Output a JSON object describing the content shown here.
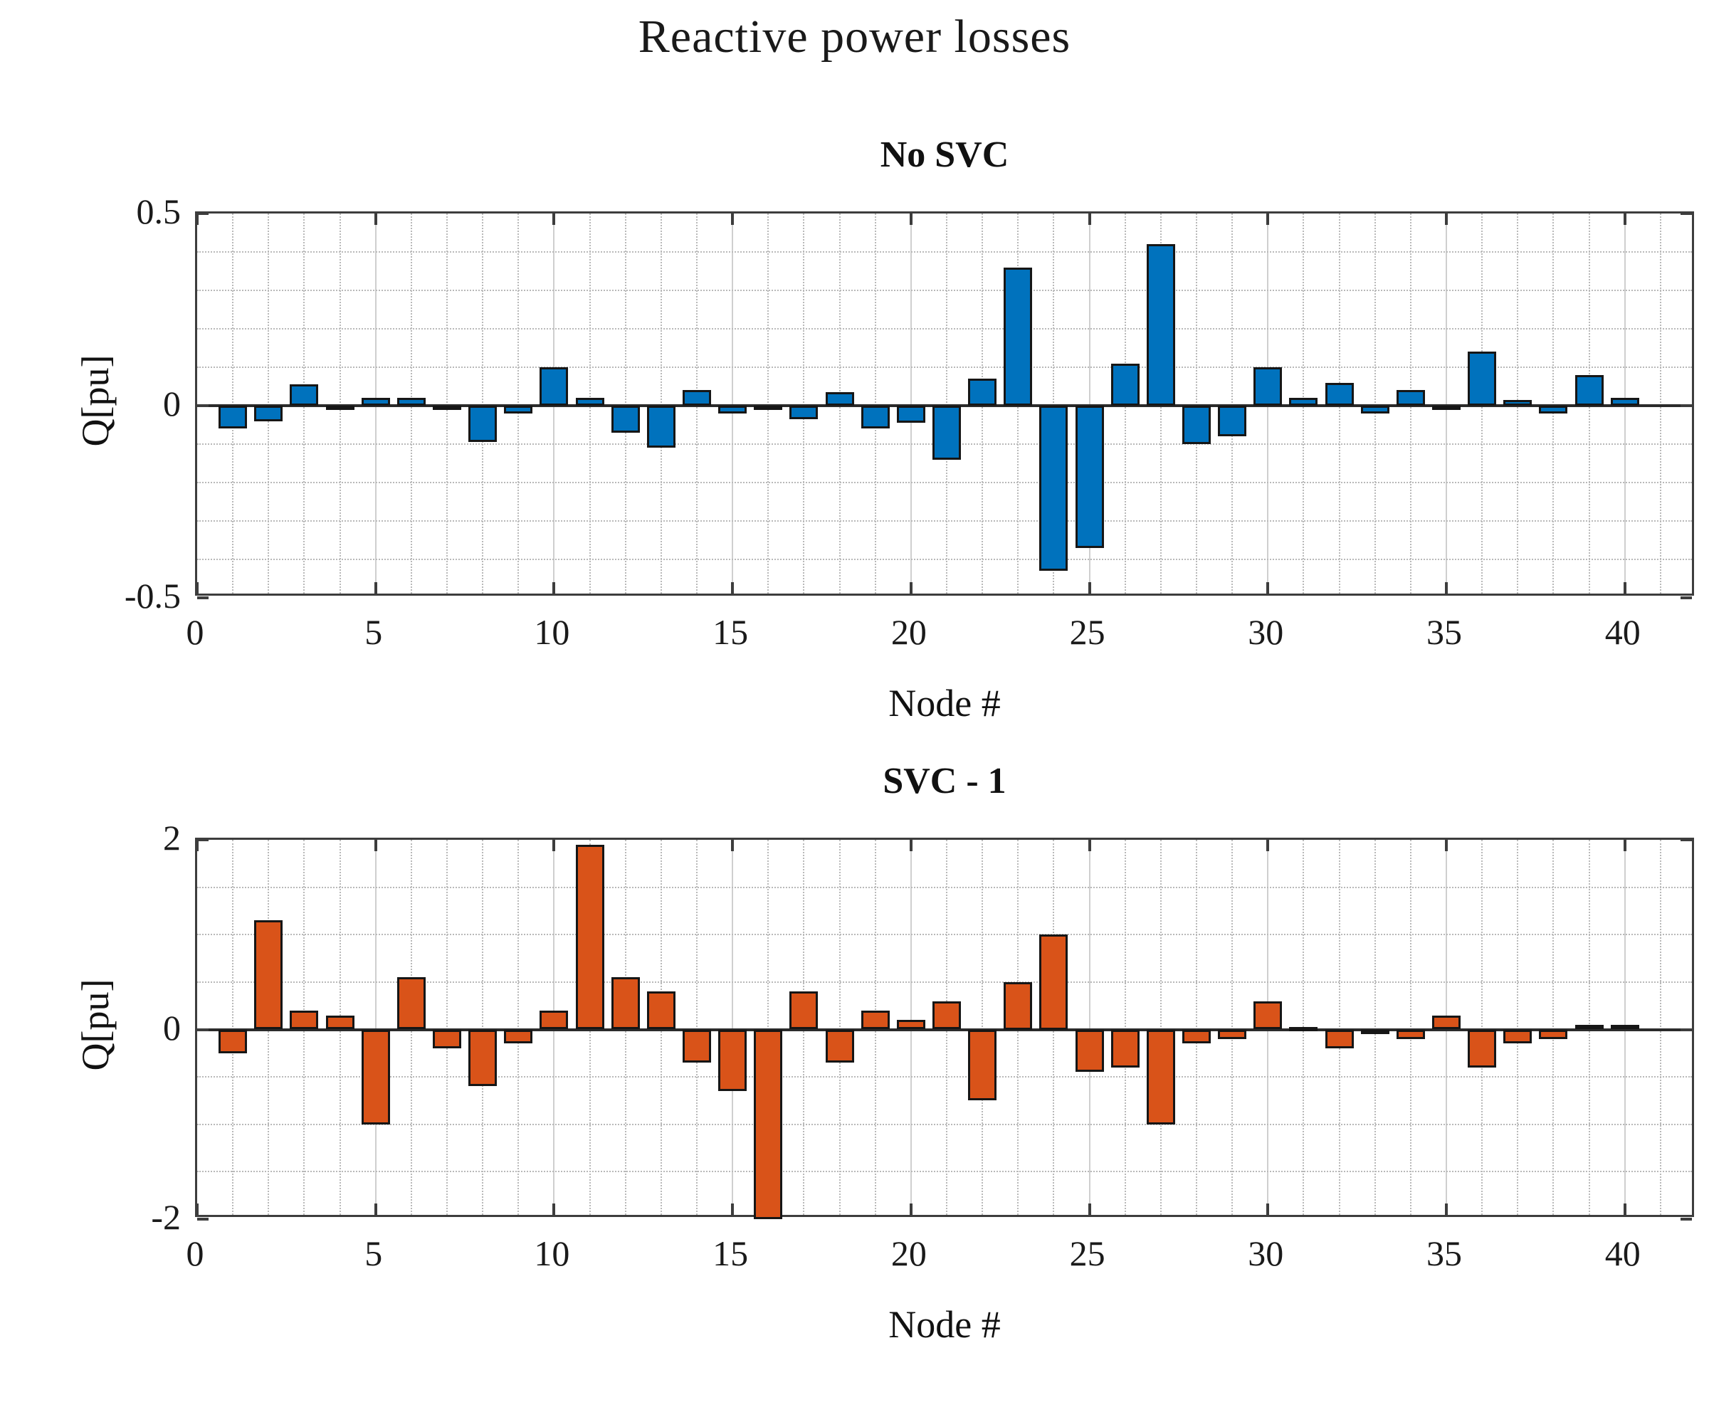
{
  "figure": {
    "title": "Reactive power losses"
  },
  "chart_data": [
    {
      "type": "bar",
      "title": "No SVC",
      "xlabel": "Node #",
      "ylabel": "Q[pu]",
      "bar_color": "#0072BD",
      "bar_edge_color": "#161616",
      "xlim": [
        0,
        42
      ],
      "ylim": [
        -0.5,
        0.5
      ],
      "y_minor_step": 0.1,
      "x_minor_step": 1,
      "xtick_labels": [
        "0",
        "5",
        "10",
        "15",
        "20",
        "25",
        "30",
        "35",
        "40"
      ],
      "xticks": [
        0,
        5,
        10,
        15,
        20,
        25,
        30,
        35,
        40
      ],
      "ytick_labels": [
        "0.5",
        "0",
        "-0.5"
      ],
      "yticks": [
        0.5,
        0,
        -0.5
      ],
      "categories": [
        1,
        2,
        3,
        4,
        5,
        6,
        7,
        8,
        9,
        10,
        11,
        12,
        13,
        14,
        15,
        16,
        17,
        18,
        19,
        20,
        21,
        22,
        23,
        24,
        25,
        26,
        27,
        28,
        29,
        30,
        31,
        32,
        33,
        34,
        35,
        36,
        37,
        38,
        39,
        40
      ],
      "values": [
        -0.06,
        -0.04,
        0.055,
        -0.005,
        0.02,
        0.02,
        -0.005,
        -0.095,
        -0.02,
        0.1,
        0.02,
        -0.07,
        -0.11,
        0.04,
        -0.02,
        -0.01,
        -0.035,
        0.035,
        -0.06,
        -0.045,
        -0.14,
        0.07,
        0.36,
        -0.43,
        -0.37,
        0.11,
        0.42,
        -0.1,
        -0.08,
        0.1,
        0.02,
        0.06,
        -0.02,
        0.04,
        -0.01,
        0.14,
        0.015,
        -0.02,
        0.08,
        0.02
      ],
      "grid": "on, major vertical solid, minor dotted"
    },
    {
      "type": "bar",
      "title": "SVC - 1",
      "xlabel": "Node #",
      "ylabel": "Q[pu]",
      "bar_color": "#D95319",
      "bar_edge_color": "#161616",
      "xlim": [
        0,
        42
      ],
      "ylim": [
        -2,
        2
      ],
      "y_minor_step": 0.5,
      "x_minor_step": 1,
      "xtick_labels": [
        "0",
        "5",
        "10",
        "15",
        "20",
        "25",
        "30",
        "35",
        "40"
      ],
      "xticks": [
        0,
        5,
        10,
        15,
        20,
        25,
        30,
        35,
        40
      ],
      "ytick_labels": [
        "2",
        "0",
        "-2"
      ],
      "yticks": [
        2,
        0,
        -2
      ],
      "categories": [
        1,
        2,
        3,
        4,
        5,
        6,
        7,
        8,
        9,
        10,
        11,
        12,
        13,
        14,
        15,
        16,
        17,
        18,
        19,
        20,
        21,
        22,
        23,
        24,
        25,
        26,
        27,
        28,
        29,
        30,
        31,
        32,
        33,
        34,
        35,
        36,
        37,
        38,
        39,
        40
      ],
      "values": [
        -0.25,
        1.15,
        0.2,
        0.15,
        -1.0,
        0.55,
        -0.2,
        -0.6,
        -0.15,
        0.2,
        1.95,
        0.55,
        0.4,
        -0.35,
        -0.65,
        -2.0,
        0.4,
        -0.35,
        0.2,
        0.1,
        0.3,
        -0.75,
        0.5,
        1.0,
        -0.45,
        -0.4,
        -1.0,
        -0.15,
        -0.1,
        0.3,
        0.03,
        -0.2,
        -0.05,
        -0.1,
        0.15,
        -0.4,
        -0.15,
        -0.1,
        0.05,
        0.05
      ],
      "grid": "on, major vertical solid, minor dotted"
    }
  ]
}
